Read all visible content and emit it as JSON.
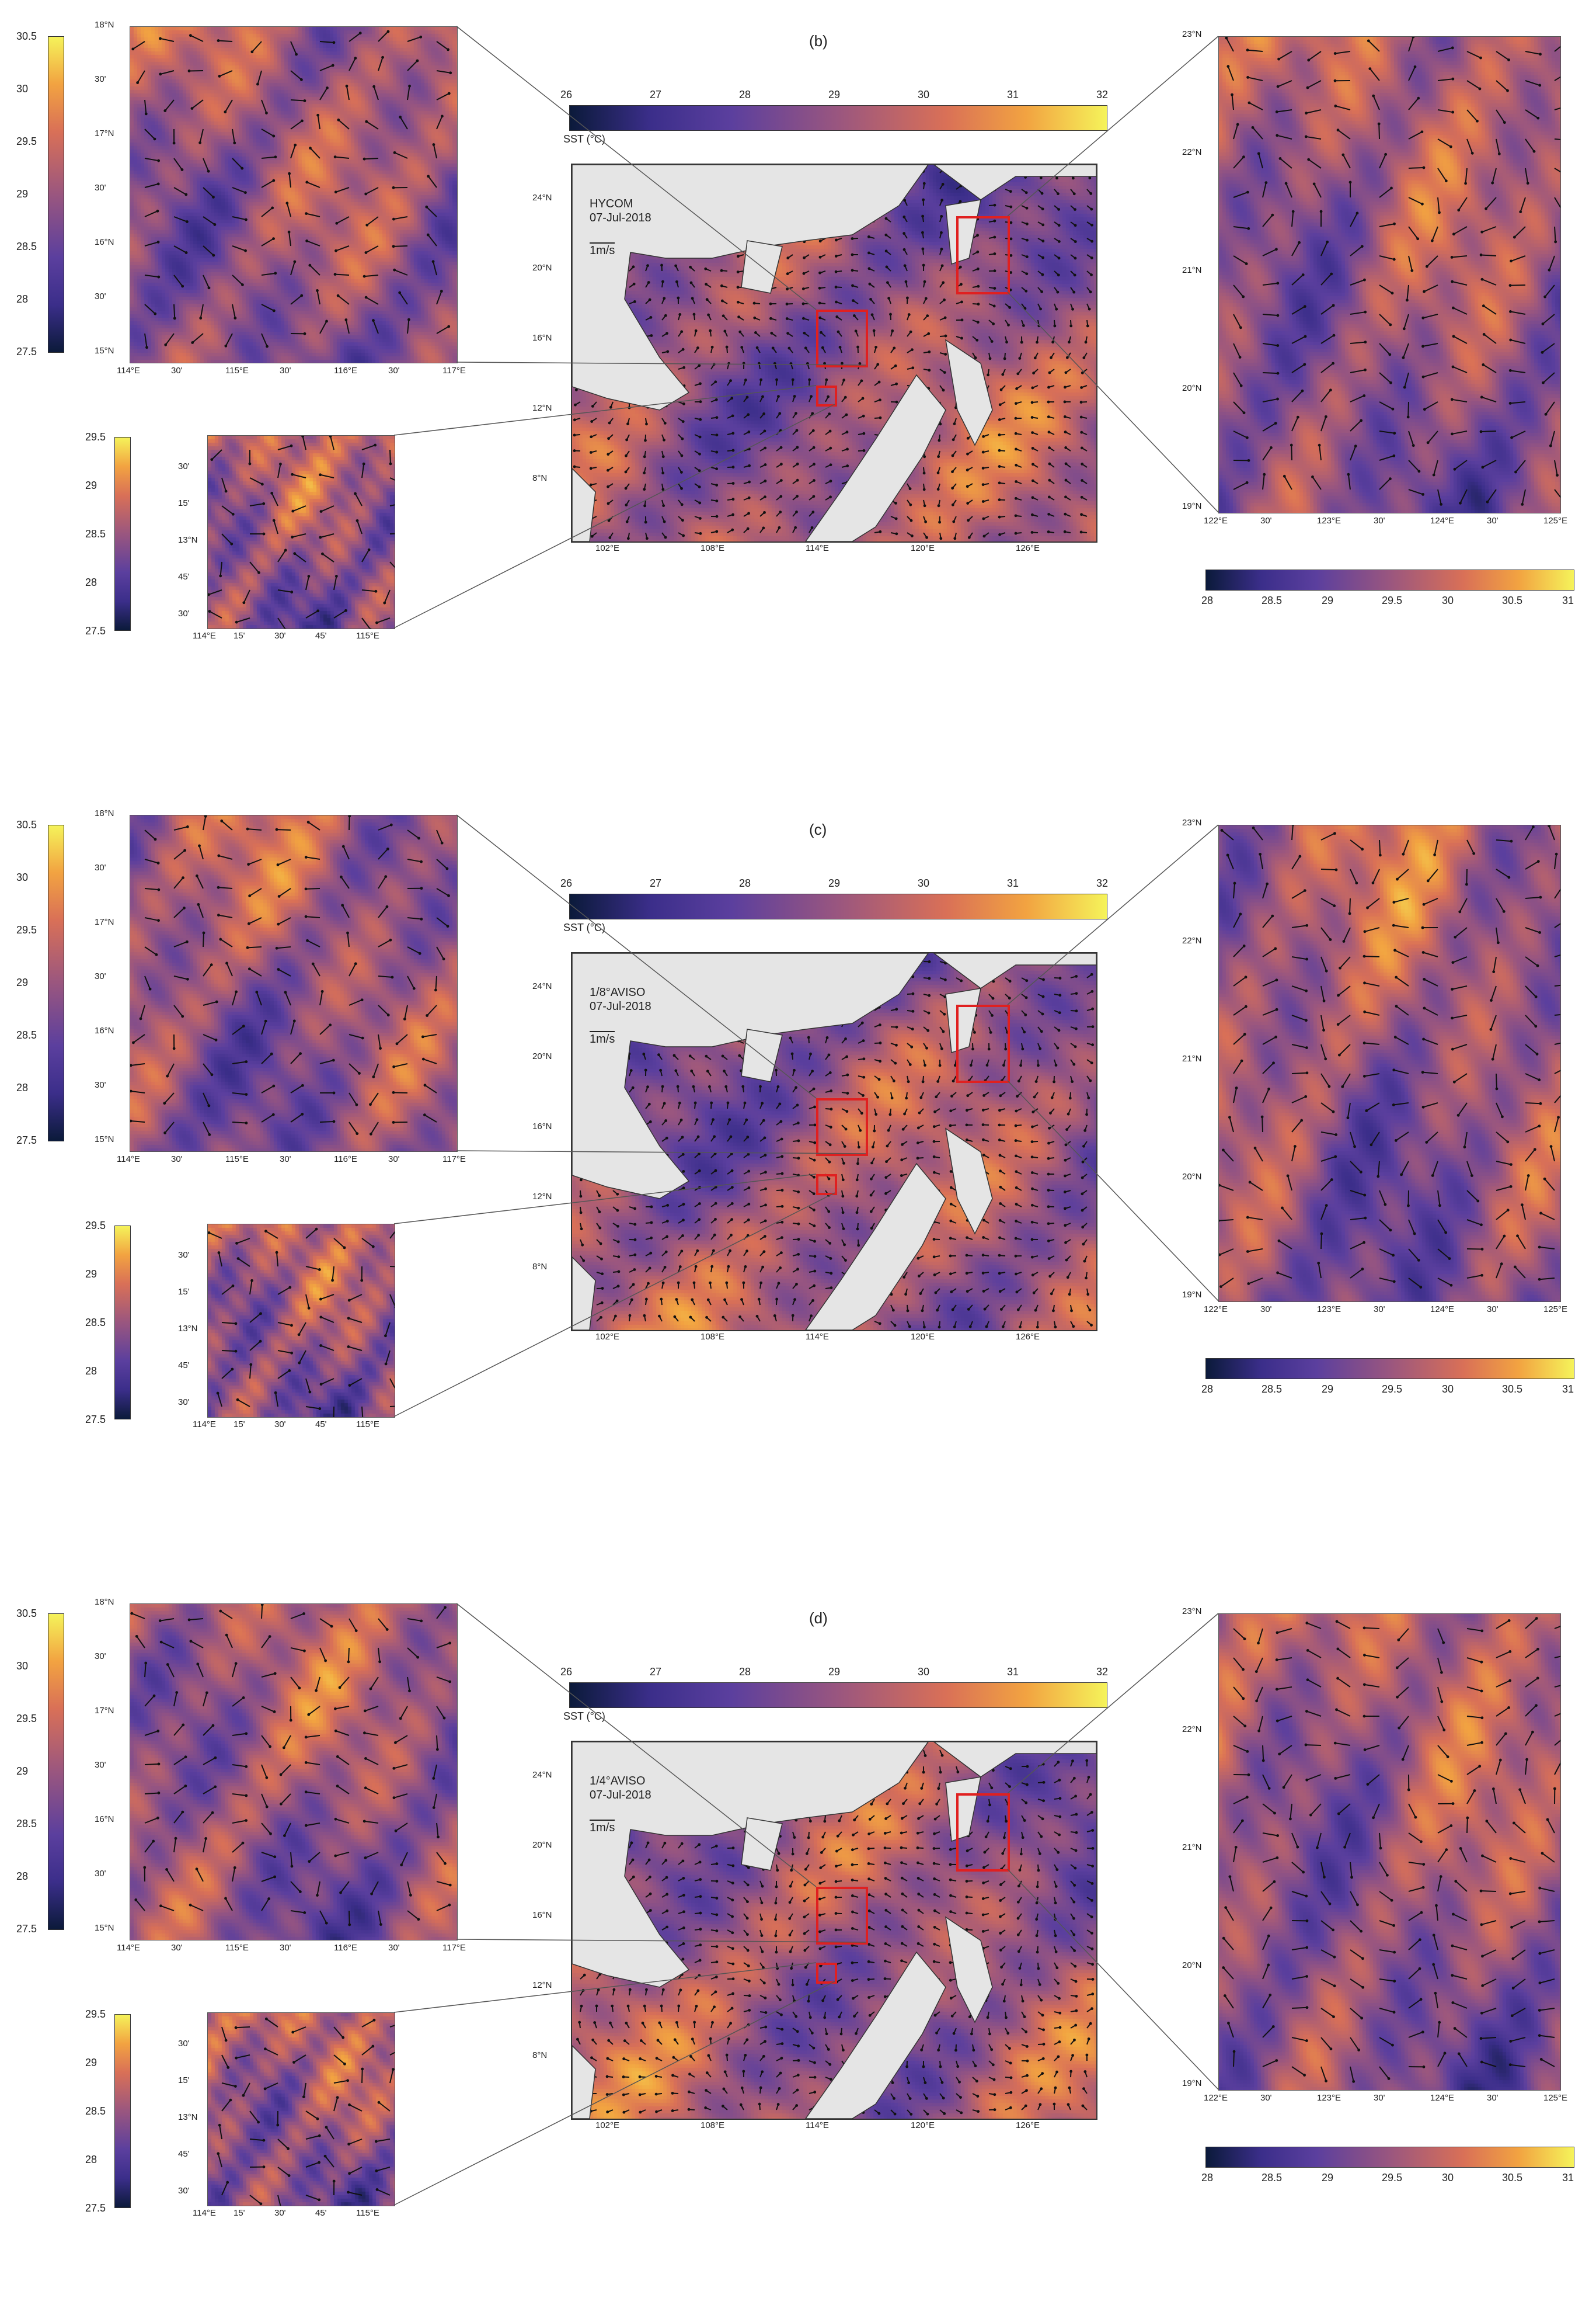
{
  "panels": [
    {
      "label": "(b)",
      "model": "HYCOM",
      "date": "07-Jul-2018",
      "scale_text": "1m/s",
      "sst_label": "SST (°C)",
      "main_cbar_ticks": [
        "26",
        "27",
        "28",
        "29",
        "30",
        "31",
        "32"
      ],
      "main_lat_ticks": [
        "24°N",
        "20°N",
        "16°N",
        "12°N",
        "8°N"
      ],
      "main_lon_ticks": [
        "102°E",
        "108°E",
        "114°E",
        "120°E",
        "126°E"
      ],
      "inset_top_left": {
        "cbar_ticks": [
          "30.5",
          "30",
          "29.5",
          "29",
          "28.5",
          "28",
          "27.5"
        ],
        "lat_ticks": [
          "18°N",
          "30'",
          "17°N",
          "30'",
          "16°N",
          "30'",
          "15°N"
        ],
        "lon_ticks": [
          "114°E",
          "30'",
          "115°E",
          "30'",
          "116°E",
          "30'",
          "117°E"
        ]
      },
      "inset_small": {
        "cbar_ticks": [
          "29.5",
          "29",
          "28.5",
          "28",
          "27.5"
        ],
        "lat_ticks": [
          "30'",
          "15'",
          "13°N",
          "45'",
          "30'"
        ],
        "lon_ticks": [
          "114°E",
          "15'",
          "30'",
          "45'",
          "115°E"
        ]
      },
      "inset_right": {
        "cbar_ticks": [
          "28",
          "28.5",
          "29",
          "29.5",
          "30",
          "30.5",
          "31"
        ],
        "lat_ticks": [
          "23°N",
          "22°N",
          "21°N",
          "20°N",
          "19°N"
        ],
        "lon_ticks": [
          "122°E",
          "30'",
          "123°E",
          "30'",
          "124°E",
          "30'",
          "125°E"
        ]
      }
    },
    {
      "label": "(c)",
      "model": "1/8°AVISO",
      "date": "07-Jul-2018",
      "scale_text": "1m/s",
      "sst_label": "SST (°C)",
      "main_cbar_ticks": [
        "26",
        "27",
        "28",
        "29",
        "30",
        "31",
        "32"
      ],
      "main_lat_ticks": [
        "24°N",
        "20°N",
        "16°N",
        "12°N",
        "8°N"
      ],
      "main_lon_ticks": [
        "102°E",
        "108°E",
        "114°E",
        "120°E",
        "126°E"
      ],
      "inset_top_left": {
        "cbar_ticks": [
          "30.5",
          "30",
          "29.5",
          "29",
          "28.5",
          "28",
          "27.5"
        ],
        "lat_ticks": [
          "18°N",
          "30'",
          "17°N",
          "30'",
          "16°N",
          "30'",
          "15°N"
        ],
        "lon_ticks": [
          "114°E",
          "30'",
          "115°E",
          "30'",
          "116°E",
          "30'",
          "117°E"
        ]
      },
      "inset_small": {
        "cbar_ticks": [
          "29.5",
          "29",
          "28.5",
          "28",
          "27.5"
        ],
        "lat_ticks": [
          "30'",
          "15'",
          "13°N",
          "45'",
          "30'"
        ],
        "lon_ticks": [
          "114°E",
          "15'",
          "30'",
          "45'",
          "115°E"
        ]
      },
      "inset_right": {
        "cbar_ticks": [
          "28",
          "28.5",
          "29",
          "29.5",
          "30",
          "30.5",
          "31"
        ],
        "lat_ticks": [
          "23°N",
          "22°N",
          "21°N",
          "20°N",
          "19°N"
        ],
        "lon_ticks": [
          "122°E",
          "30'",
          "123°E",
          "30'",
          "124°E",
          "30'",
          "125°E"
        ]
      }
    },
    {
      "label": "(d)",
      "model": "1/4°AVISO",
      "date": "07-Jul-2018",
      "scale_text": "1m/s",
      "sst_label": "SST (°C)",
      "main_cbar_ticks": [
        "26",
        "27",
        "28",
        "29",
        "30",
        "31",
        "32"
      ],
      "main_lat_ticks": [
        "24°N",
        "20°N",
        "16°N",
        "12°N",
        "8°N"
      ],
      "main_lon_ticks": [
        "102°E",
        "108°E",
        "114°E",
        "120°E",
        "126°E"
      ],
      "inset_top_left": {
        "cbar_ticks": [
          "30.5",
          "30",
          "29.5",
          "29",
          "28.5",
          "28",
          "27.5"
        ],
        "lat_ticks": [
          "18°N",
          "30'",
          "17°N",
          "30'",
          "16°N",
          "30'",
          "15°N"
        ],
        "lon_ticks": [
          "114°E",
          "30'",
          "115°E",
          "30'",
          "116°E",
          "30'",
          "117°E"
        ]
      },
      "inset_small": {
        "cbar_ticks": [
          "29.5",
          "29",
          "28.5",
          "28",
          "27.5"
        ],
        "lat_ticks": [
          "30'",
          "15'",
          "13°N",
          "45'",
          "30'"
        ],
        "lon_ticks": [
          "114°E",
          "15'",
          "30'",
          "45'",
          "115°E"
        ]
      },
      "inset_right": {
        "cbar_ticks": [
          "28",
          "28.5",
          "29",
          "29.5",
          "30",
          "30.5",
          "31"
        ],
        "lat_ticks": [
          "23°N",
          "22°N",
          "21°N",
          "20°N",
          "19°N"
        ],
        "lon_ticks": [
          "122°E",
          "30'",
          "123°E",
          "30'",
          "124°E",
          "30'",
          "125°E"
        ]
      }
    }
  ],
  "colors": {
    "land": "#e5e5e5",
    "box": "#e02020",
    "sst_low": "#0b1a3a",
    "sst_mid": "#9a567f",
    "sst_high": "#f5f35a"
  }
}
